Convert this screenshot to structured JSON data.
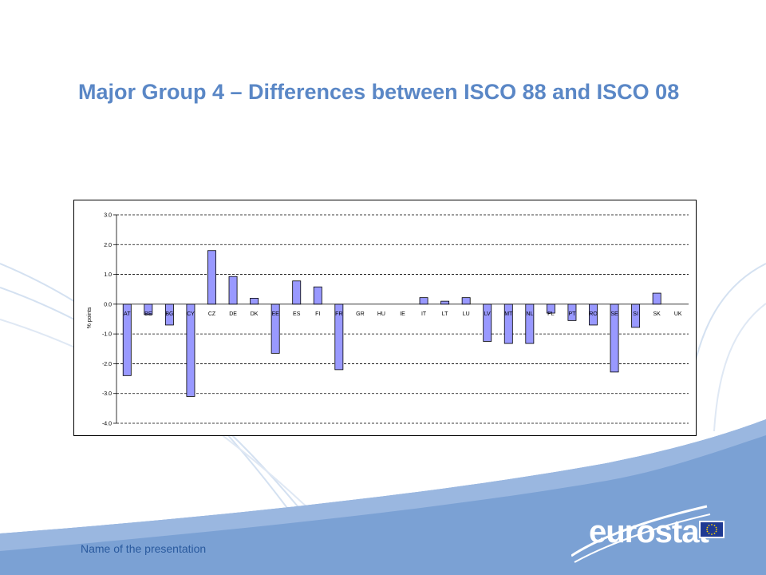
{
  "slide": {
    "title": "Major Group 4 – Differences between ISCO 88 and ISCO 08",
    "footer": "Name of the presentation",
    "logo_text": "eurostat"
  },
  "colors": {
    "title": "#5a87c6",
    "bar_fill": "#9999ff",
    "bar_stroke": "#000000",
    "footer_band": "#7ba1d4"
  },
  "icons": {
    "flag": "eu-flag-icon",
    "swoosh": "background-swoosh"
  },
  "chart_data": {
    "type": "bar",
    "title": "",
    "xlabel": "",
    "ylabel": "% points",
    "ylim": [
      -4.0,
      3.0
    ],
    "yticks": [
      -4.0,
      -3.0,
      -2.0,
      -1.0,
      0.0,
      1.0,
      2.0,
      3.0
    ],
    "ytick_labels": [
      "-4.0",
      "-3.0",
      "-2.0",
      "-1.0",
      "0.0",
      "1.0",
      "2.0",
      "3.0"
    ],
    "grid": "dashed horizontal",
    "legend": "none",
    "categories": [
      "AT",
      "BE",
      "BG",
      "CY",
      "CZ",
      "DE",
      "DK",
      "EE",
      "ES",
      "FI",
      "FR",
      "GR",
      "HU",
      "IE",
      "IT",
      "LT",
      "LU",
      "LV",
      "MT",
      "NL",
      "PL",
      "PT",
      "RO",
      "SE",
      "SI",
      "SK",
      "UK"
    ],
    "values": [
      -2.4,
      -0.35,
      -0.7,
      -3.1,
      1.8,
      0.93,
      0.2,
      -1.65,
      0.78,
      0.58,
      -2.2,
      0,
      0,
      0,
      0.22,
      0.1,
      0.22,
      -1.25,
      -1.32,
      -1.32,
      -0.3,
      -0.55,
      -0.7,
      -2.28,
      -0.78,
      0.37,
      0
    ]
  }
}
